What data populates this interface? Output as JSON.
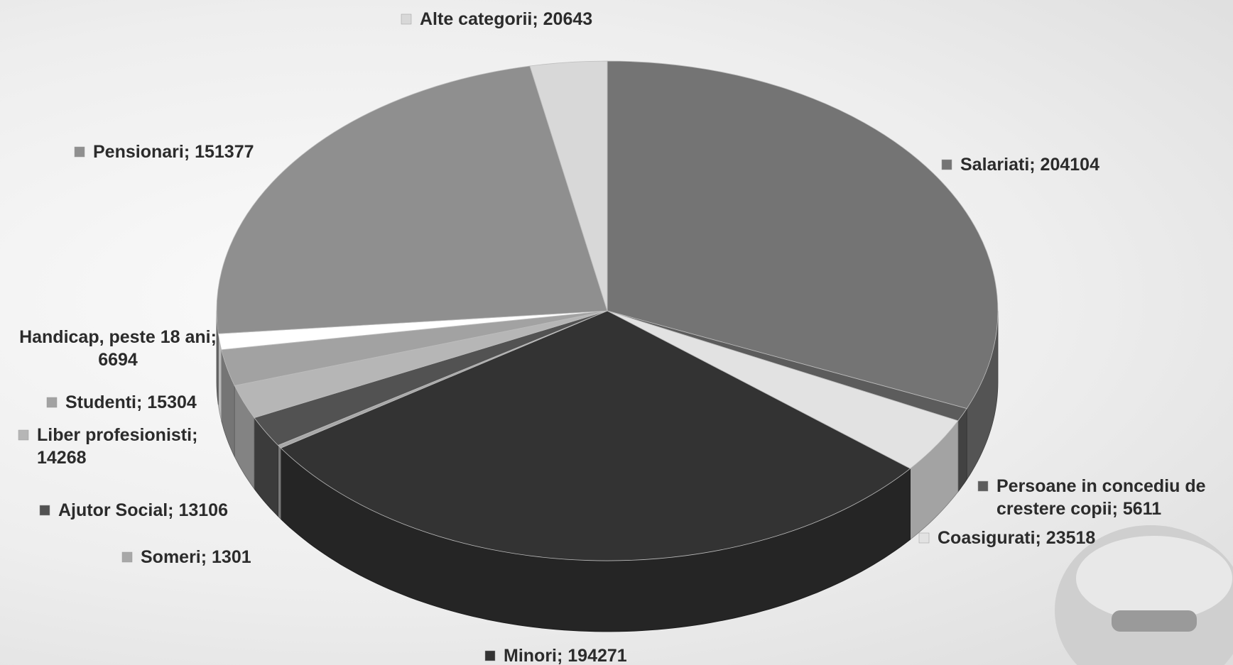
{
  "chart_data": {
    "type": "pie",
    "title": "",
    "categories": [
      "Salariati",
      "Persoane in concediu de crestere copii",
      "Coasigurati",
      "Minori",
      "Someri",
      "Ajutor Social",
      "Liber profesionisti",
      "Studenti",
      "Handicap, peste 18 ani",
      "Pensionari",
      "Alte categorii"
    ],
    "values": [
      204104,
      5611,
      23518,
      194271,
      1301,
      13106,
      14268,
      15304,
      6694,
      151377,
      20643
    ],
    "slices": [
      {
        "label": "Salariati",
        "value": 204104,
        "label_text": [
          "Salariati; 204104"
        ],
        "color": "#747474"
      },
      {
        "label": "Persoane in concediu de crestere copii",
        "value": 5611,
        "label_text": [
          "Persoane in concediu de",
          "crestere copii; 5611"
        ],
        "color": "#5c5c5c"
      },
      {
        "label": "Coasigurati",
        "value": 23518,
        "label_text": [
          "Coasigurati; 23518"
        ],
        "color": "#e2e2e2"
      },
      {
        "label": "Minori",
        "value": 194271,
        "label_text": [
          "Minori; 194271"
        ],
        "color": "#333333"
      },
      {
        "label": "Someri",
        "value": 1301,
        "label_text": [
          "Someri; 1301"
        ],
        "color": "#a8a8a8"
      },
      {
        "label": "Ajutor Social",
        "value": 13106,
        "label_text": [
          "Ajutor Social; 13106"
        ],
        "color": "#525252"
      },
      {
        "label": "Liber profesionisti",
        "value": 14268,
        "label_text": [
          "Liber profesionisti;",
          "14268"
        ],
        "color": "#b6b6b6"
      },
      {
        "label": "Studenti",
        "value": 15304,
        "label_text": [
          "Studenti; 15304"
        ],
        "color": "#a2a2a2"
      },
      {
        "label": "Handicap, peste 18 ani",
        "value": 6694,
        "label_text": [
          "Handicap, peste 18 ani;",
          "6694"
        ],
        "color": "#ffffff"
      },
      {
        "label": "Pensionari",
        "value": 151377,
        "label_text": [
          "Pensionari; 151377"
        ],
        "color": "#8f8f8f"
      },
      {
        "label": "Alte categorii",
        "value": 20643,
        "label_text": [
          "Alte categorii; 20643"
        ],
        "color": "#d8d8d8"
      }
    ],
    "legend": "labels-outside-with-markers",
    "start": "top, clockwise",
    "style": "3d-tilted"
  }
}
